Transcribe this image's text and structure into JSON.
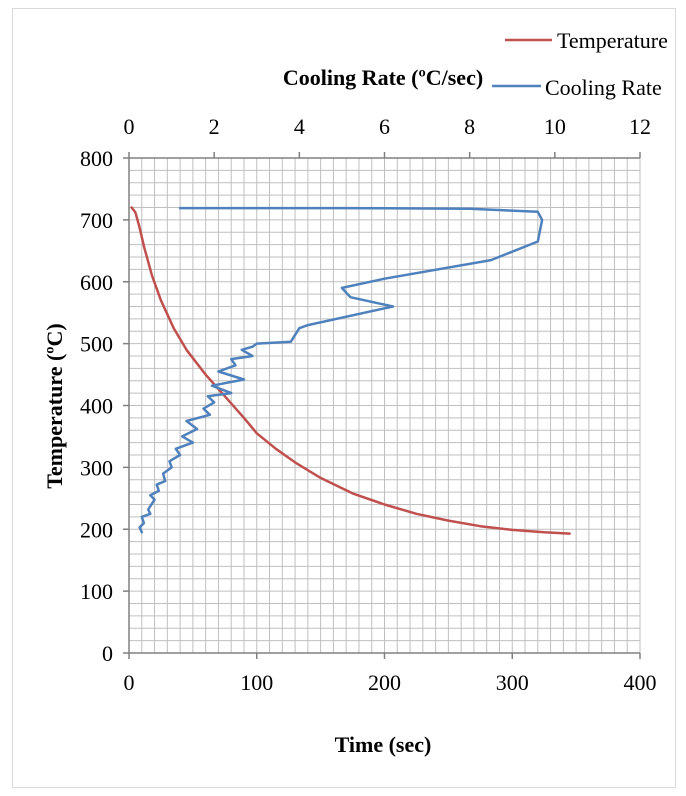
{
  "chart_data": {
    "type": "line",
    "title": "",
    "legend_position": "top-right",
    "grid": true,
    "xlabel_bottom": "Time (sec)",
    "xlabel_top": "Cooling Rate (ºC/sec)",
    "ylabel": "Temperature  (ºC)",
    "xlim_bottom": [
      0,
      400
    ],
    "xticks_bottom": [
      "0",
      "100",
      "200",
      "300",
      "400"
    ],
    "xlim_top": [
      0,
      12
    ],
    "xticks_top": [
      "0",
      "2",
      "4",
      "6",
      "8",
      "10",
      "12"
    ],
    "ylim": [
      0,
      800
    ],
    "yticks": [
      "0",
      "100",
      "200",
      "300",
      "400",
      "500",
      "600",
      "700",
      "800"
    ],
    "series": [
      {
        "name": "Temperature",
        "color": "#c0504d",
        "x_axis": "Time (sec)",
        "x": [
          2,
          5,
          8,
          12,
          18,
          25,
          35,
          45,
          60,
          75,
          90,
          100,
          115,
          130,
          150,
          175,
          200,
          225,
          250,
          275,
          300,
          325,
          345
        ],
        "y": [
          720,
          712,
          690,
          655,
          610,
          570,
          525,
          490,
          450,
          415,
          380,
          355,
          330,
          308,
          283,
          258,
          240,
          225,
          214,
          205,
          199,
          195,
          193
        ]
      },
      {
        "name": "Cooling Rate",
        "color": "#4f81bd",
        "x_axis": "Cooling Rate (ºC/sec)",
        "x": [
          0.3,
          0.25,
          0.35,
          0.3,
          0.5,
          0.45,
          0.6,
          0.5,
          0.7,
          0.65,
          0.85,
          0.8,
          1.0,
          0.95,
          1.2,
          1.1,
          1.5,
          1.25,
          1.6,
          1.35,
          1.9,
          1.75,
          2.0,
          1.85,
          2.4,
          1.95,
          2.7,
          2.1,
          2.5,
          2.4,
          2.9,
          2.65,
          2.9,
          3.0,
          3.8,
          4.0,
          4.2,
          6.2,
          5.2,
          5.0,
          6.0,
          8.5,
          9.6,
          9.7,
          9.6,
          8.0,
          5.0,
          1.2
        ],
        "y": [
          195,
          203,
          210,
          220,
          225,
          232,
          248,
          255,
          262,
          272,
          278,
          290,
          300,
          310,
          320,
          330,
          340,
          350,
          362,
          375,
          385,
          395,
          405,
          415,
          420,
          432,
          442,
          455,
          465,
          475,
          480,
          490,
          495,
          500,
          503,
          525,
          530,
          560,
          575,
          590,
          605,
          635,
          665,
          700,
          713,
          718,
          719,
          719
        ]
      }
    ]
  }
}
